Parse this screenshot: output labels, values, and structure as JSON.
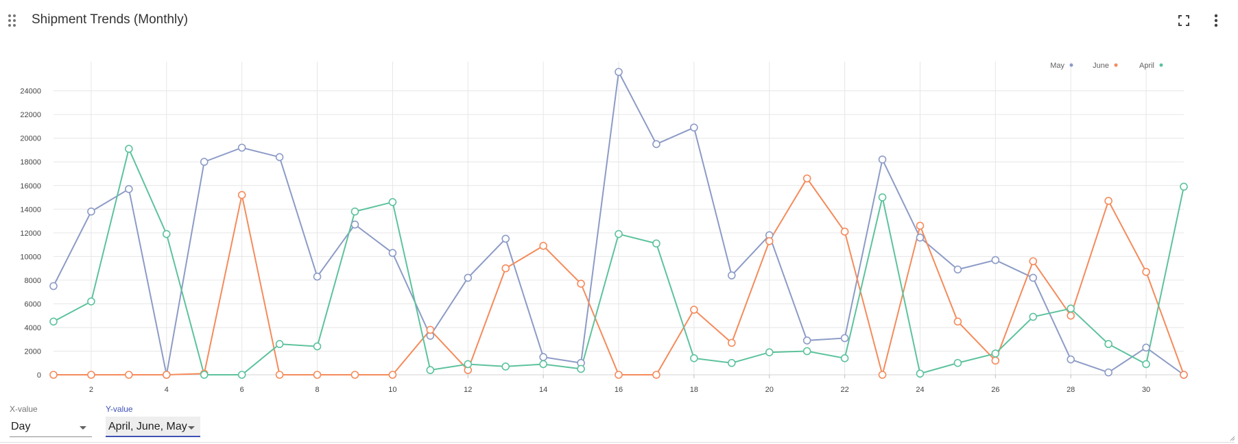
{
  "header": {
    "title": "Shipment Trends (Monthly)",
    "drag_icon": "drag-handle-icon",
    "fullscreen_icon": "fullscreen-icon",
    "menu_icon": "more-vert-icon"
  },
  "controls": {
    "x_label": "X-value",
    "x_value": "Day",
    "y_label": "Y-value",
    "y_value": "April, June, May",
    "accent": "#3f51b5"
  },
  "chart_data": {
    "type": "line",
    "title": "",
    "xlabel": "",
    "ylabel": "",
    "x": [
      1,
      2,
      3,
      4,
      5,
      6,
      7,
      8,
      9,
      10,
      11,
      12,
      13,
      14,
      15,
      16,
      17,
      18,
      19,
      20,
      21,
      22,
      23,
      24,
      25,
      26,
      27,
      28,
      29,
      30,
      31
    ],
    "xlim": [
      1,
      31
    ],
    "xticks": [
      2,
      4,
      6,
      8,
      10,
      12,
      14,
      16,
      18,
      20,
      22,
      24,
      26,
      28,
      30
    ],
    "ylim": [
      0,
      25600
    ],
    "yticks": [
      0,
      2000,
      4000,
      6000,
      8000,
      10000,
      12000,
      14000,
      16000,
      18000,
      20000,
      22000,
      24000
    ],
    "grid": true,
    "legend_position": "top-right",
    "series": [
      {
        "name": "May",
        "color": "#8c9bc6",
        "values": [
          7500,
          13800,
          15700,
          0,
          18000,
          19200,
          18400,
          8300,
          12700,
          10300,
          3300,
          8200,
          11500,
          1500,
          1000,
          25600,
          19500,
          20900,
          8400,
          11800,
          2900,
          3100,
          18200,
          11600,
          8900,
          9700,
          8200,
          1300,
          200,
          2300,
          0
        ]
      },
      {
        "name": "June",
        "color": "#f58a5a",
        "values": [
          0,
          0,
          0,
          0,
          100,
          15200,
          0,
          0,
          0,
          0,
          3800,
          400,
          9000,
          10900,
          7700,
          0,
          0,
          5500,
          2700,
          11300,
          16600,
          12100,
          0,
          12600,
          4500,
          1200,
          9600,
          5000,
          14700,
          8700,
          0
        ]
      },
      {
        "name": "April",
        "color": "#5cc29c",
        "values": [
          4500,
          6200,
          19100,
          11900,
          0,
          0,
          2600,
          2400,
          13800,
          14600,
          400,
          900,
          700,
          900,
          500,
          11900,
          11100,
          1400,
          1000,
          1900,
          2000,
          1400,
          15000,
          100,
          1000,
          1800,
          4900,
          5600,
          2600,
          900,
          15900
        ]
      }
    ]
  }
}
